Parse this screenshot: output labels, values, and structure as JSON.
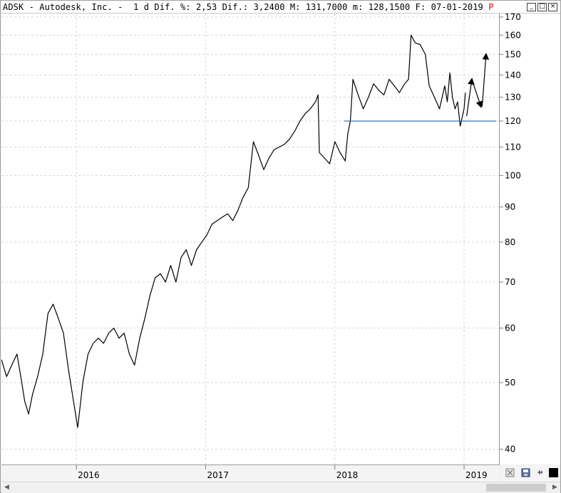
{
  "window": {
    "title_prefix": "ADSK - Autodesk, Inc. -  1 d Dif. %: 2,53 Dif.: 3,2400 M: 131,7000 m: 128,1500 F: 07-01-2019 ",
    "title_flag": "P",
    "buttons": [
      "_",
      "□",
      "×"
    ]
  },
  "toolbar": {
    "icons": [
      "chart-settings-icon",
      "save-icon",
      "pin-icon",
      "color-square-icon"
    ]
  },
  "chart_data": {
    "type": "line",
    "title": "",
    "xlabel": "",
    "ylabel": "",
    "y_scale": "log",
    "ylim": [
      38,
      172
    ],
    "xlim": [
      2015.42,
      2019.27
    ],
    "y_ticks": [
      40,
      50,
      60,
      70,
      80,
      90,
      100,
      110,
      120,
      130,
      140,
      150,
      160,
      170
    ],
    "x_ticks": [
      {
        "label": "2016",
        "x": 2016.0
      },
      {
        "label": "2017",
        "x": 2017.0
      },
      {
        "label": "2018",
        "x": 2018.0
      },
      {
        "label": "2019",
        "x": 2019.0
      }
    ],
    "grid": true,
    "legend": "none",
    "line_color": "#000000",
    "series": [
      {
        "points": [
          [
            2015.42,
            54
          ],
          [
            2015.46,
            51
          ],
          [
            2015.5,
            53
          ],
          [
            2015.54,
            55
          ],
          [
            2015.57,
            51
          ],
          [
            2015.6,
            47
          ],
          [
            2015.63,
            45
          ],
          [
            2015.66,
            48
          ],
          [
            2015.7,
            51
          ],
          [
            2015.74,
            55
          ],
          [
            2015.78,
            63
          ],
          [
            2015.82,
            65
          ],
          [
            2015.86,
            62
          ],
          [
            2015.9,
            59
          ],
          [
            2015.94,
            52
          ],
          [
            2015.97,
            48
          ],
          [
            2016.01,
            43
          ],
          [
            2016.05,
            50
          ],
          [
            2016.09,
            55
          ],
          [
            2016.13,
            57
          ],
          [
            2016.17,
            58
          ],
          [
            2016.21,
            57
          ],
          [
            2016.25,
            59
          ],
          [
            2016.29,
            60
          ],
          [
            2016.33,
            58
          ],
          [
            2016.37,
            59
          ],
          [
            2016.41,
            55
          ],
          [
            2016.45,
            53
          ],
          [
            2016.49,
            58
          ],
          [
            2016.53,
            62
          ],
          [
            2016.57,
            67
          ],
          [
            2016.61,
            71
          ],
          [
            2016.65,
            72
          ],
          [
            2016.69,
            70
          ],
          [
            2016.73,
            74
          ],
          [
            2016.77,
            70
          ],
          [
            2016.81,
            76
          ],
          [
            2016.85,
            78
          ],
          [
            2016.89,
            74
          ],
          [
            2016.93,
            78
          ],
          [
            2016.97,
            80
          ],
          [
            2017.01,
            82
          ],
          [
            2017.05,
            85
          ],
          [
            2017.09,
            86
          ],
          [
            2017.13,
            87
          ],
          [
            2017.17,
            88
          ],
          [
            2017.21,
            86
          ],
          [
            2017.25,
            89
          ],
          [
            2017.29,
            93
          ],
          [
            2017.33,
            96
          ],
          [
            2017.37,
            112
          ],
          [
            2017.41,
            107
          ],
          [
            2017.45,
            102
          ],
          [
            2017.49,
            106
          ],
          [
            2017.53,
            109
          ],
          [
            2017.57,
            110
          ],
          [
            2017.61,
            111
          ],
          [
            2017.65,
            113
          ],
          [
            2017.69,
            116
          ],
          [
            2017.73,
            120
          ],
          [
            2017.77,
            123
          ],
          [
            2017.81,
            125
          ],
          [
            2017.85,
            128
          ],
          [
            2017.87,
            131
          ],
          [
            2017.88,
            108
          ],
          [
            2017.92,
            106
          ],
          [
            2017.96,
            104
          ],
          [
            2018.0,
            112
          ],
          [
            2018.04,
            108
          ],
          [
            2018.08,
            105
          ],
          [
            2018.1,
            115
          ],
          [
            2018.12,
            120
          ],
          [
            2018.14,
            138
          ],
          [
            2018.18,
            131
          ],
          [
            2018.22,
            125
          ],
          [
            2018.26,
            130
          ],
          [
            2018.3,
            136
          ],
          [
            2018.34,
            133
          ],
          [
            2018.38,
            131
          ],
          [
            2018.42,
            138
          ],
          [
            2018.46,
            135
          ],
          [
            2018.5,
            132
          ],
          [
            2018.54,
            136
          ],
          [
            2018.57,
            138
          ],
          [
            2018.59,
            160
          ],
          [
            2018.62,
            156
          ],
          [
            2018.66,
            155
          ],
          [
            2018.7,
            150
          ],
          [
            2018.73,
            135
          ],
          [
            2018.77,
            130
          ],
          [
            2018.81,
            125
          ],
          [
            2018.85,
            135
          ],
          [
            2018.87,
            128
          ],
          [
            2018.89,
            141
          ],
          [
            2018.91,
            130
          ],
          [
            2018.93,
            125
          ],
          [
            2018.95,
            128
          ],
          [
            2018.97,
            118
          ],
          [
            2019.0,
            125
          ],
          [
            2019.01,
            132
          ]
        ]
      }
    ],
    "annotations": [
      {
        "type": "hline",
        "y": 120,
        "x_from": 2018.07,
        "x_to": 2019.25,
        "color": "#1a6bb5"
      },
      {
        "type": "arrow",
        "from": [
          2019.02,
          122
        ],
        "to": [
          2019.06,
          138
        ]
      },
      {
        "type": "polyline",
        "points": [
          [
            2019.06,
            138
          ],
          [
            2019.13,
            126
          ]
        ]
      },
      {
        "type": "arrow",
        "from": [
          2019.14,
          126
        ],
        "to": [
          2019.17,
          150
        ]
      }
    ]
  }
}
